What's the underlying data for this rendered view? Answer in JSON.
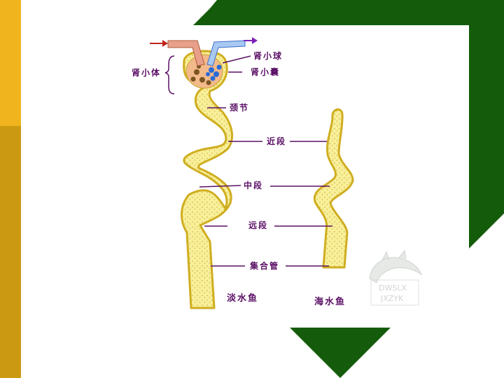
{
  "colors": {
    "left_bar_top": "#f0b41e",
    "left_bar_bottom": "#cc9a12",
    "frame_green": "#145c0b",
    "tubule_fill": "#f8ef9a",
    "tubule_edge": "#cfae20",
    "label_purple": "#5b1066",
    "arrow_in": "#c0261e",
    "arrow_out": "#7a22b8"
  },
  "icons": [
    "dragon-watermark-icon"
  ],
  "labels": {
    "glomerulus": "肾小球",
    "renal_corpuscle": "肾小体",
    "bowman_capsule": "肾小囊",
    "neck": "颈节",
    "proximal": "近段",
    "middle": "中段",
    "distal": "远段",
    "collecting_duct": "集合管",
    "freshwater_fish": "淡水鱼",
    "marine_fish": "海水鱼"
  },
  "watermark": {
    "line1": "DWSLX",
    "line2": "JXZYK"
  }
}
